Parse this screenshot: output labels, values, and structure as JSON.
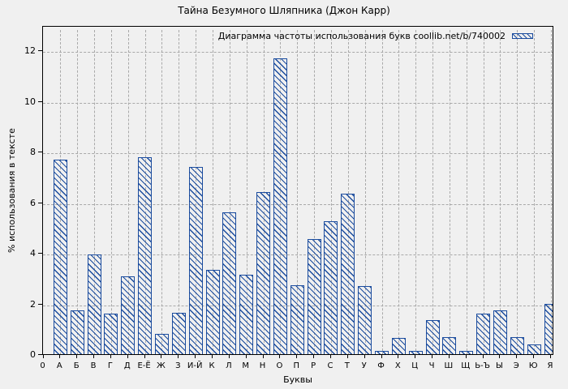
{
  "colors": {
    "bar": "#1b4c9e",
    "background": "#f0f0f0",
    "grid": "#a9a9a9"
  },
  "chart_data": {
    "type": "bar",
    "title": "Тайна Безумного Шляпника (Джон Карр)",
    "legend_label": "Диаграмма частоты использования букв coollib.net/b/740002",
    "xlabel": "Буквы",
    "ylabel": "% использования в тексте",
    "yticks": [
      0,
      2,
      4,
      6,
      8,
      10,
      12
    ],
    "ylim": [
      0,
      13
    ],
    "grid": true,
    "legend_position": "top-right",
    "bar_style": "hatched-outline",
    "categories": [
      "0",
      "А",
      "Б",
      "В",
      "Г",
      "Д",
      "Е-Ё",
      "Ж",
      "З",
      "И-Й",
      "К",
      "Л",
      "М",
      "Н",
      "О",
      "П",
      "Р",
      "С",
      "Т",
      "У",
      "Ф",
      "Х",
      "Ц",
      "Ч",
      "Ш",
      "Щ",
      "Ь-Ъ",
      "Ы",
      "Э",
      "Ю",
      "Я"
    ],
    "values": [
      null,
      7.75,
      1.8,
      4.0,
      1.65,
      3.15,
      7.85,
      0.85,
      1.7,
      7.45,
      3.4,
      5.65,
      3.2,
      6.45,
      11.75,
      2.8,
      4.6,
      5.3,
      6.4,
      2.75,
      0.2,
      0.7,
      0.2,
      1.4,
      0.75,
      0.2,
      1.65,
      1.8,
      0.75,
      0.45,
      2.05
    ]
  }
}
